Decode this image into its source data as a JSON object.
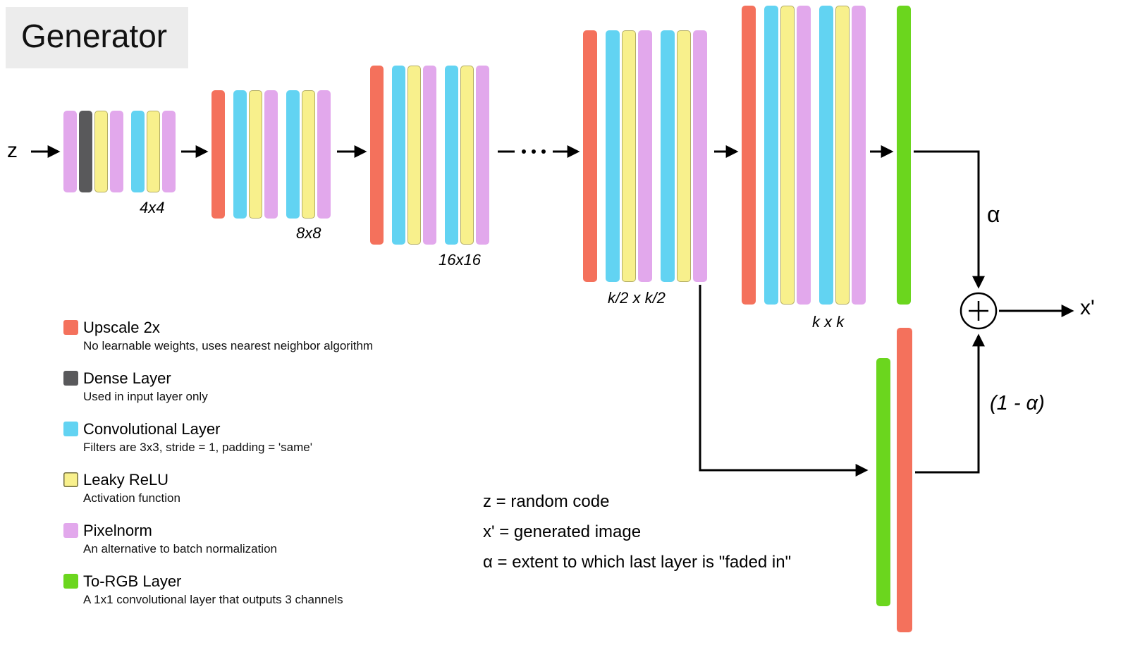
{
  "title": "Generator",
  "labels": {
    "input": "z",
    "output": "x'",
    "alpha": "α",
    "one_minus_alpha": "(1 - α)"
  },
  "layer_types": {
    "upscale": {
      "name": "Upscale 2x",
      "color": "#F4715C"
    },
    "dense": {
      "name": "Dense Layer",
      "color": "#59595B"
    },
    "conv": {
      "name": "Convolutional Layer",
      "color": "#62D3F2"
    },
    "relu": {
      "name": "Leaky ReLU",
      "color": "#F8F08C"
    },
    "pixelnorm": {
      "name": "Pixelnorm",
      "color": "#E2A8EC"
    },
    "torgb": {
      "name": "To-RGB Layer",
      "color": "#6BD61E"
    }
  },
  "blocks": [
    {
      "label": "4x4",
      "bars": [
        [
          "pixelnorm",
          "dense",
          "relu",
          "pixelnorm"
        ],
        [
          "conv",
          "relu",
          "pixelnorm"
        ]
      ]
    },
    {
      "label": "8x8",
      "bars": [
        [
          "upscale"
        ],
        [
          "conv",
          "relu",
          "pixelnorm"
        ],
        [
          "conv",
          "relu",
          "pixelnorm"
        ]
      ]
    },
    {
      "label": "16x16",
      "bars": [
        [
          "upscale"
        ],
        [
          "conv",
          "relu",
          "pixelnorm"
        ],
        [
          "conv",
          "relu",
          "pixelnorm"
        ]
      ]
    },
    {
      "label": "k/2 x k/2",
      "bars": [
        [
          "upscale"
        ],
        [
          "conv",
          "relu",
          "pixelnorm"
        ],
        [
          "conv",
          "relu",
          "pixelnorm"
        ]
      ]
    },
    {
      "label": "k x k",
      "bars": [
        [
          "upscale"
        ],
        [
          "conv",
          "relu",
          "pixelnorm"
        ],
        [
          "conv",
          "relu",
          "pixelnorm"
        ]
      ]
    }
  ],
  "fade_bars": [
    {
      "type": "torgb",
      "name": "torgb-bar-main"
    },
    {
      "type": "torgb",
      "name": "torgb-bar-skip"
    },
    {
      "type": "upscale",
      "name": "upscale-bar-skip"
    }
  ],
  "legend": [
    {
      "type": "upscale",
      "title": "Upscale 2x",
      "desc": "No learnable weights, uses nearest neighbor algorithm"
    },
    {
      "type": "dense",
      "title": "Dense Layer",
      "desc": "Used in input layer only"
    },
    {
      "type": "conv",
      "title": "Convolutional Layer",
      "desc": "Filters are 3x3, stride = 1,  padding = 'same'"
    },
    {
      "type": "relu",
      "title": "Leaky ReLU",
      "desc": "Activation function"
    },
    {
      "type": "pixelnorm",
      "title": "Pixelnorm",
      "desc": "An alternative to batch normalization"
    },
    {
      "type": "torgb",
      "title": "To-RGB Layer",
      "desc": "A 1x1 convolutional layer that outputs 3 channels"
    }
  ],
  "notes": [
    "z = random code",
    "x' = generated image",
    "α = extent to which last layer is \"faded in\""
  ]
}
